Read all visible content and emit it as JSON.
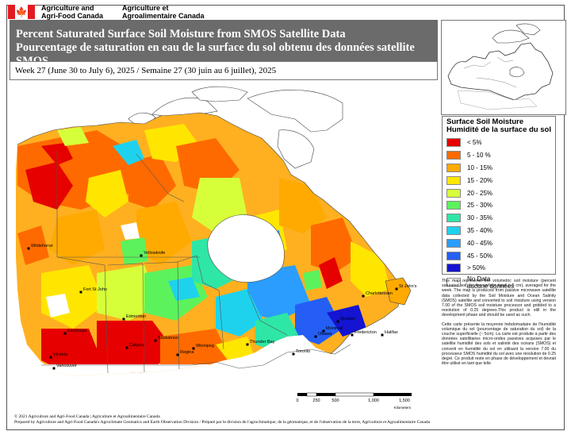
{
  "header": {
    "org_en_line1": "Agriculture and",
    "org_en_line2": "Agri-Food Canada",
    "org_fr_line1": "Agriculture et",
    "org_fr_line2": "Agroalimentaire Canada"
  },
  "title": {
    "line_en": "Percent Saturated Surface Soil Moisture from SMOS Satellite Data",
    "line_fr": "Pourcentage de saturation en eau de la surface du sol obtenu des données satellite SMOS"
  },
  "week_label": "Week 27 (June 30  to July 6), 2025 / Semaine 27 (30 juin au 6 juillet), 2025",
  "legend": {
    "title_en": "Surface Soil Moisture",
    "title_fr": "Humidité de la surface du sol",
    "classes": [
      {
        "label": "< 5%",
        "color": "#e60000"
      },
      {
        "label": "5 - 10 %",
        "color": "#ff6a00"
      },
      {
        "label": "10 - 15%",
        "color": "#ffaa00"
      },
      {
        "label": "15 - 20%",
        "color": "#ffe600"
      },
      {
        "label": "20 - 25%",
        "color": "#d6ff3a"
      },
      {
        "label": "25 - 30%",
        "color": "#5cf25c"
      },
      {
        "label": "30 - 35%",
        "color": "#2ee6a6"
      },
      {
        "label": "35 - 40%",
        "color": "#1ed2ee"
      },
      {
        "label": "40 - 45%",
        "color": "#2a9dff"
      },
      {
        "label": "45 - 50%",
        "color": "#245ef5"
      },
      {
        "label": "> 50%",
        "color": "#1414d2"
      }
    ],
    "nodata_en": "No Data",
    "nodata_fr": "aucune données"
  },
  "description_en": "This map represents the volumetric soil moisture (percent saturated soil) for the surface layer (~5 cm), averaged for the week. The map is produced from passive microwave satellite data collected by the Soil Moisture and Ocean Salinity (SMOS) satellite and converted to soil moisture using version 7.00 of the SMOS soil moisture processor and gridded to a resolution of 0.25 degrees.This product is still in the development phase and should be used as such.",
  "description_fr": "Cette carte présente la moyenne hebdomadaire de l'humidité volumique du sol (pourcentage de saturation du sol) de la couche superficielle (~ 5cm). La carte est produite à partir des données satellitaires micro-ondes passives acquises par le satellite humidité des sols et salinité des océans (SMOS) et converti en humidité du sol en utilisant la version 7.00 du processeur SMOS humidité du sol avec une résolution de 0.25 degré. Ce produit reste en phase de développement et devrait être utilisé en tant que telle",
  "cities": [
    "Whitehorse",
    "Yellowknife",
    "Fort St John",
    "Edmonton",
    "Saskatoon",
    "Kamloops",
    "Calgary",
    "Regina",
    "Winnipeg",
    "Victoria",
    "Vancouver",
    "Thunder Bay",
    "Toronto",
    "Ottawa",
    "Montreal",
    "Quebec",
    "Fredericton",
    "Halifax",
    "Charlottetown",
    "St John's"
  ],
  "scale": {
    "ticks": [
      "0",
      "250",
      "500",
      "1,000",
      "1,500"
    ],
    "unit": "Kilometers"
  },
  "footer": {
    "line1": "© 2021 Agriculture and Agri-Food Canada | Agriculture et Agroalimentaire Canada",
    "line2": "Prepared by Agriculture and Agri-Food Canada's Agroclimate Geomatics and Earth Observation Division / Préparé par le division de l'agroclimatique, de la géomatique, et de l'observation de la terre, Agriculture et Agroalimentaire Canada"
  }
}
